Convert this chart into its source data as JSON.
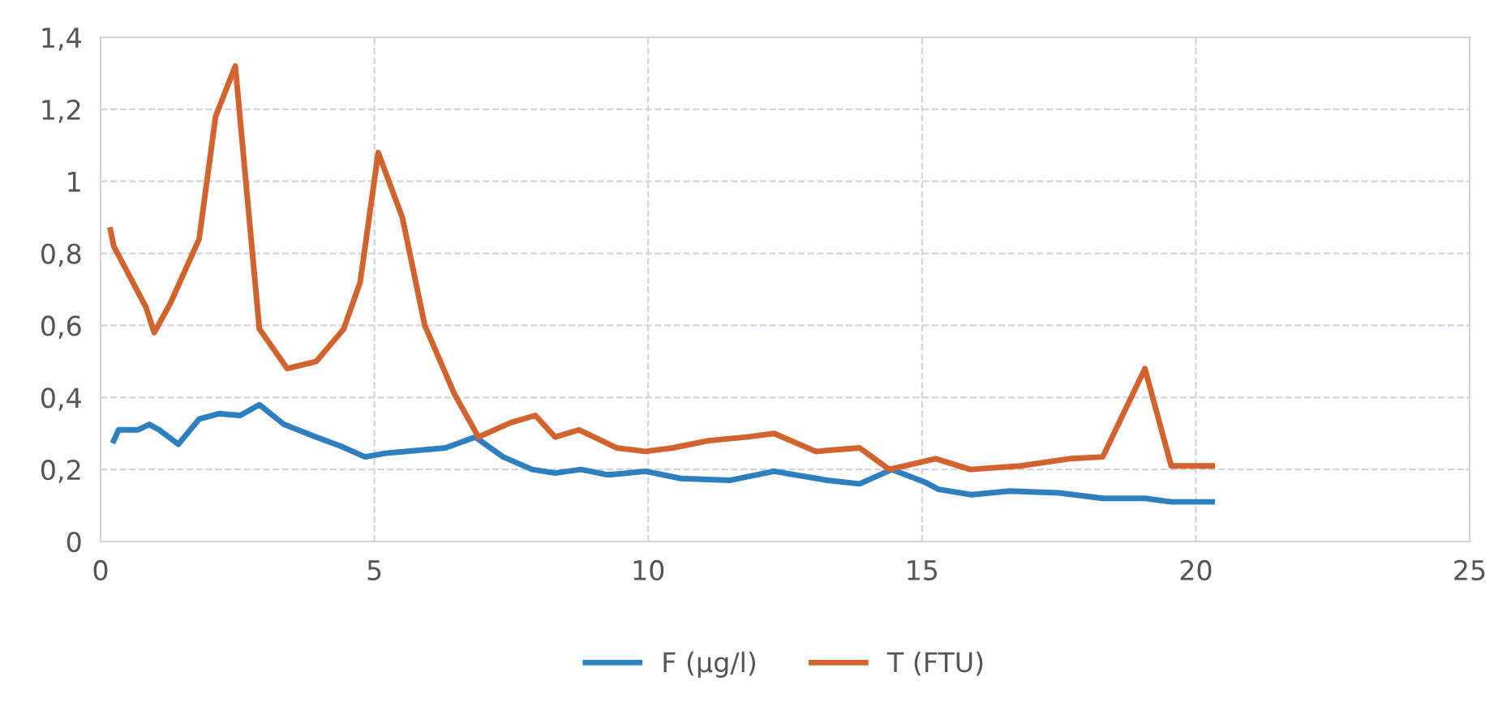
{
  "chart_data": {
    "type": "line",
    "xlim": [
      0,
      25
    ],
    "xticks": [
      0,
      5,
      10,
      15,
      20,
      25
    ],
    "ylim": [
      0,
      1.4
    ],
    "yticks": [
      0,
      {
        "value": 0.2,
        "label": "0,2"
      },
      {
        "value": 0.4,
        "label": "0,4"
      },
      {
        "value": 0.6,
        "label": "0,6"
      },
      {
        "value": 0.8,
        "label": "0,8"
      },
      1,
      {
        "value": 1.2,
        "label": "1,2"
      },
      {
        "value": 1.4,
        "label": "1,4"
      }
    ],
    "grid": true,
    "legend": "bottom",
    "marker": "none",
    "series": [
      {
        "name": "F (µg/l)",
        "color": "#2e7fc0",
        "x": [
          0.24,
          0.33,
          0.68,
          0.89,
          1.07,
          1.42,
          1.8,
          2.16,
          2.55,
          2.9,
          3.35,
          3.94,
          4.38,
          4.83,
          5.2,
          5.56,
          6.3,
          6.84,
          7.35,
          7.88,
          8.3,
          8.77,
          9.27,
          9.95,
          10.6,
          11.5,
          12.3,
          13.27,
          13.86,
          14.45,
          15.05,
          15.3,
          15.9,
          16.6,
          17.5,
          18.3,
          19.07,
          19.55,
          20.3
        ],
        "values": [
          0.28,
          0.31,
          0.31,
          0.325,
          0.31,
          0.27,
          0.34,
          0.355,
          0.35,
          0.38,
          0.325,
          0.29,
          0.265,
          0.235,
          0.245,
          0.25,
          0.26,
          0.29,
          0.235,
          0.2,
          0.19,
          0.2,
          0.185,
          0.195,
          0.175,
          0.17,
          0.195,
          0.17,
          0.16,
          0.2,
          0.165,
          0.145,
          0.13,
          0.14,
          0.135,
          0.12,
          0.12,
          0.11,
          0.11
        ]
      },
      {
        "name": "T (FTU)",
        "color": "#d2622e",
        "x": [
          0.18,
          0.24,
          0.83,
          0.98,
          1.27,
          1.8,
          2.1,
          2.46,
          2.9,
          3.41,
          3.94,
          4.44,
          4.74,
          5.07,
          5.51,
          5.92,
          6.46,
          6.9,
          7.49,
          7.94,
          8.3,
          8.74,
          9.42,
          9.95,
          10.45,
          11.1,
          11.8,
          12.3,
          13.06,
          13.86,
          14.4,
          15.25,
          15.88,
          16.8,
          17.7,
          18.3,
          19.07,
          19.55,
          20.3
        ],
        "values": [
          0.865,
          0.82,
          0.65,
          0.58,
          0.66,
          0.84,
          1.18,
          1.32,
          0.59,
          0.48,
          0.5,
          0.59,
          0.72,
          1.08,
          0.9,
          0.6,
          0.41,
          0.29,
          0.33,
          0.35,
          0.29,
          0.31,
          0.26,
          0.25,
          0.26,
          0.28,
          0.29,
          0.3,
          0.25,
          0.26,
          0.2,
          0.23,
          0.2,
          0.21,
          0.23,
          0.235,
          0.48,
          0.21,
          0.21
        ]
      }
    ]
  }
}
